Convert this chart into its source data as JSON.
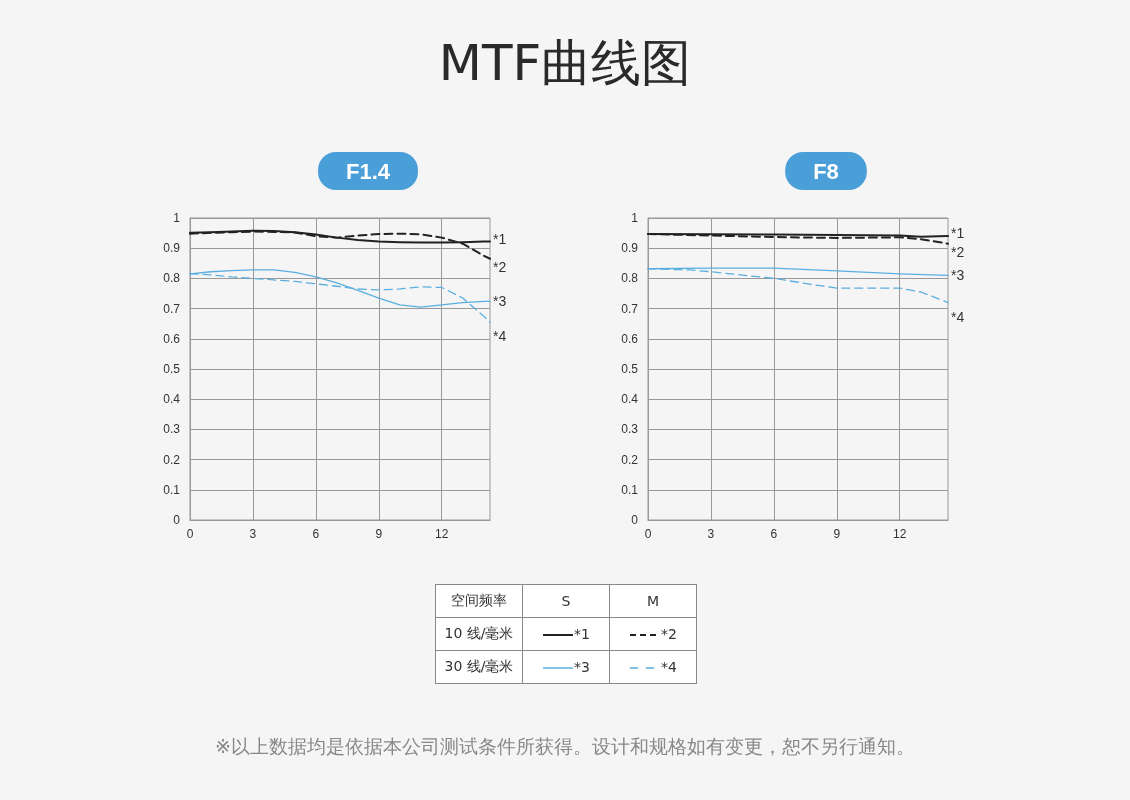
{
  "chart_data": [
    {
      "type": "other",
      "title": "MTF曲线图"
    },
    {
      "type": "line",
      "title": "F1.4",
      "xlim": [
        0,
        14.3
      ],
      "xticks": [
        0,
        3,
        6,
        9,
        12
      ],
      "ylim": [
        0,
        1
      ],
      "yticks": [
        0,
        0.1,
        0.2,
        0.3,
        0.4,
        0.5,
        0.6,
        0.7,
        0.8,
        0.9,
        1
      ],
      "grid": true,
      "marker": "none",
      "series": [
        {
          "name": "*1",
          "color": "#222222",
          "line_style": "solid",
          "x": [
            0,
            1,
            2,
            3,
            4,
            5,
            6,
            7,
            8,
            9,
            10,
            11,
            12,
            13,
            14,
            14.3
          ],
          "values": [
            0.951,
            0.953,
            0.955,
            0.958,
            0.957,
            0.953,
            0.945,
            0.935,
            0.927,
            0.922,
            0.92,
            0.919,
            0.919,
            0.92,
            0.922,
            0.922
          ]
        },
        {
          "name": "*2",
          "color": "#222222",
          "line_style": "dashed",
          "x": [
            0,
            1,
            2,
            3,
            4,
            5,
            6,
            7,
            8,
            9,
            10,
            11,
            12,
            13,
            14,
            14.3
          ],
          "values": [
            0.948,
            0.951,
            0.953,
            0.955,
            0.954,
            0.952,
            0.94,
            0.935,
            0.942,
            0.947,
            0.948,
            0.946,
            0.935,
            0.915,
            0.875,
            0.865
          ]
        },
        {
          "name": "*3",
          "color": "#5aafe0",
          "line_style": "solid",
          "x": [
            0,
            1,
            2,
            3,
            4,
            5,
            6,
            7,
            8,
            9,
            10,
            11,
            12,
            13,
            14,
            14.3
          ],
          "values": [
            0.815,
            0.822,
            0.826,
            0.828,
            0.828,
            0.82,
            0.805,
            0.785,
            0.76,
            0.735,
            0.712,
            0.705,
            0.712,
            0.72,
            0.724,
            0.724
          ]
        },
        {
          "name": "*4",
          "color": "#5aafe0",
          "line_style": "dashed",
          "x": [
            0,
            1,
            2,
            3,
            4,
            5,
            6,
            7,
            8,
            9,
            10,
            11,
            12,
            13,
            14,
            14.3
          ],
          "values": [
            0.815,
            0.812,
            0.805,
            0.8,
            0.795,
            0.79,
            0.782,
            0.774,
            0.765,
            0.762,
            0.765,
            0.772,
            0.77,
            0.735,
            0.675,
            0.655
          ]
        }
      ]
    },
    {
      "type": "line",
      "title": "F8",
      "xlim": [
        0,
        14.3
      ],
      "xticks": [
        0,
        3,
        6,
        9,
        12
      ],
      "ylim": [
        0,
        1
      ],
      "yticks": [
        0,
        0.1,
        0.2,
        0.3,
        0.4,
        0.5,
        0.6,
        0.7,
        0.8,
        0.9,
        1
      ],
      "grid": true,
      "marker": "none",
      "series": [
        {
          "name": "*1",
          "color": "#222222",
          "line_style": "solid",
          "x": [
            0,
            3,
            6,
            9,
            12,
            13,
            14.3
          ],
          "values": [
            0.947,
            0.946,
            0.945,
            0.944,
            0.942,
            0.938,
            0.94
          ]
        },
        {
          "name": "*2",
          "color": "#222222",
          "line_style": "dashed",
          "x": [
            0,
            3,
            6,
            9,
            12,
            13,
            14.3
          ],
          "values": [
            0.947,
            0.942,
            0.937,
            0.934,
            0.936,
            0.93,
            0.915
          ]
        },
        {
          "name": "*3",
          "color": "#5aafe0",
          "line_style": "solid",
          "x": [
            0,
            3,
            6,
            9,
            12,
            14.3
          ],
          "values": [
            0.832,
            0.834,
            0.834,
            0.825,
            0.815,
            0.81
          ]
        },
        {
          "name": "*4",
          "color": "#5aafe0",
          "line_style": "dashed",
          "x": [
            0,
            2,
            3,
            6,
            8,
            9,
            11,
            12,
            13,
            14.3
          ],
          "values": [
            0.832,
            0.828,
            0.822,
            0.8,
            0.778,
            0.768,
            0.768,
            0.768,
            0.755,
            0.72
          ]
        }
      ]
    },
    {
      "type": "other",
      "annotations": [
        "空间频率",
        "S",
        "M",
        "10 线/毫米",
        "*1",
        "*2",
        "30 线/毫米",
        "*3",
        "*4",
        "※以上数据均是依据本公司测试条件所获得。设计和规格如有变更，恕不另行通知。"
      ]
    }
  ]
}
